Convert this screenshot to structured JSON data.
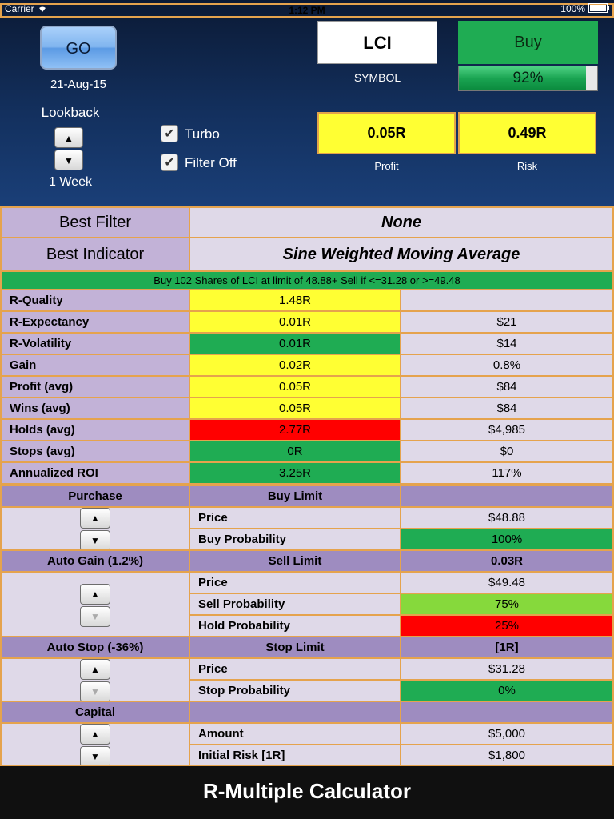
{
  "status": {
    "carrier": "Carrier",
    "time": "1:12 PM",
    "battery": "100%"
  },
  "header": {
    "go_label": "GO",
    "date": "21-Aug-15",
    "lookback_label": "Lookback",
    "lookback_value": "1 Week",
    "turbo_label": "Turbo",
    "filter_label": "Filter Off",
    "symbol_value": "LCI",
    "symbol_caption": "SYMBOL",
    "signal": "Buy",
    "confidence": "92%",
    "confidence_fraction": 0.92,
    "profit_value": "0.05R",
    "profit_caption": "Profit",
    "risk_value": "0.49R",
    "risk_caption": "Risk"
  },
  "best": {
    "filter_label": "Best Filter",
    "filter_value": "None",
    "indicator_label": "Best Indicator",
    "indicator_value": "Sine Weighted Moving Average"
  },
  "order_text": "Buy 102 Shares of LCI at limit of 48.88+ Sell if <=31.28 or >=49.48",
  "metrics": [
    {
      "label": "R-Quality",
      "r": "1.48R",
      "v": "",
      "color": "yel"
    },
    {
      "label": "R-Expectancy",
      "r": "0.01R",
      "v": "$21",
      "color": "yel"
    },
    {
      "label": "R-Volatility",
      "r": "0.01R",
      "v": "$14",
      "color": "grn"
    },
    {
      "label": "Gain",
      "r": "0.02R",
      "v": "0.8%",
      "color": "yel"
    },
    {
      "label": "Profit (avg)",
      "r": "0.05R",
      "v": "$84",
      "color": "yel"
    },
    {
      "label": "Wins (avg)",
      "r": "0.05R",
      "v": "$84",
      "color": "yel"
    },
    {
      "label": "Holds (avg)",
      "r": "2.77R",
      "v": "$4,985",
      "color": "red"
    },
    {
      "label": "Stops (avg)",
      "r": "0R",
      "v": "$0",
      "color": "grn"
    },
    {
      "label": "Annualized ROI",
      "r": "3.25R",
      "v": "117%",
      "color": "grn"
    }
  ],
  "purchase": {
    "title": "Purchase",
    "limit_label": "Buy Limit",
    "limit_value": "",
    "rows": [
      {
        "label": "Price",
        "value": "$48.88",
        "color": "lav"
      },
      {
        "label": "Buy Probability",
        "value": "100%",
        "color": "grn"
      }
    ]
  },
  "gain": {
    "title": "Auto Gain (1.2%)",
    "limit_label": "Sell Limit",
    "limit_value": "0.03R",
    "rows": [
      {
        "label": "Price",
        "value": "$49.48",
        "color": "lav"
      },
      {
        "label": "Sell Probability",
        "value": "75%",
        "color": "lgrn"
      },
      {
        "label": "Hold Probability",
        "value": "25%",
        "color": "red"
      }
    ]
  },
  "stop": {
    "title": "Auto Stop (-36%)",
    "limit_label": "Stop Limit",
    "limit_value": "[1R]",
    "rows": [
      {
        "label": "Price",
        "value": "$31.28",
        "color": "lav"
      },
      {
        "label": "Stop Probability",
        "value": "0%",
        "color": "grn"
      }
    ]
  },
  "capital": {
    "title": "Capital",
    "limit_label": "",
    "limit_value": "",
    "rows": [
      {
        "label": "Amount",
        "value": "$5,000",
        "color": "lav"
      },
      {
        "label": "Initial Risk [1R]",
        "value": "$1,800",
        "color": "lav"
      }
    ]
  },
  "footer_title": "R-Multiple Calculator",
  "icons": {
    "up": "up-arrow-icon",
    "down": "down-arrow-icon",
    "check": "checkmark-icon"
  },
  "colors": {
    "accent_green": "#1fac53",
    "light_green": "#86d93c",
    "yellow": "#ffff33",
    "red": "#ff0000",
    "border": "#e5a34d"
  }
}
